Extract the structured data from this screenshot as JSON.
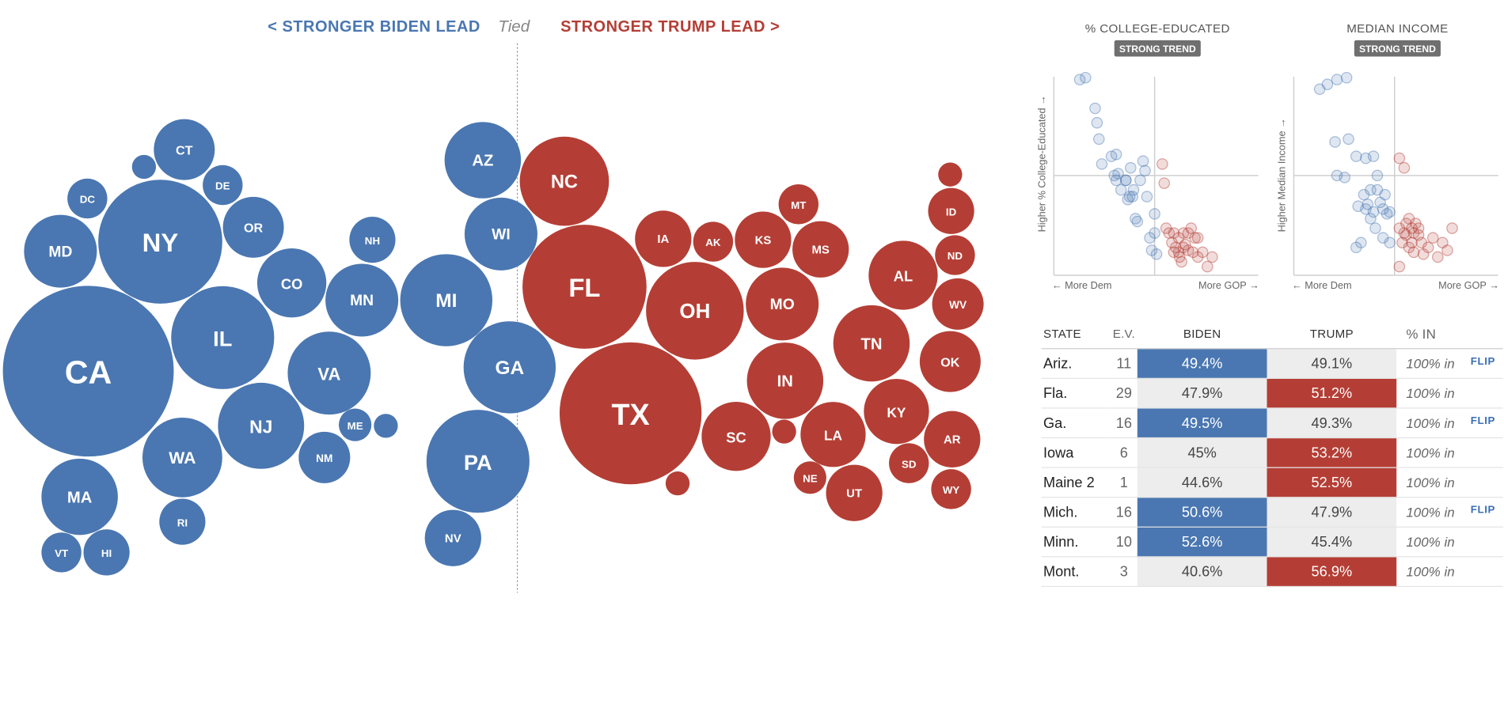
{
  "header": {
    "biden_label": "< STRONGER BIDEN LEAD",
    "tied_label": "Tied",
    "trump_label": "STRONGER TRUMP LEAD >"
  },
  "colors": {
    "biden": "#4a77b1",
    "trump": "#b43e35",
    "lose_cell": "#ededed"
  },
  "chart_data": [
    {
      "type": "bubble",
      "description_scale": "circle area proportional to electoral votes; horizontal position by lead",
      "series": [
        {
          "name": "Biden",
          "color": "#4a77b1",
          "states": [
            {
              "label": "CA",
              "ev": 55
            },
            {
              "label": "NY",
              "ev": 29
            },
            {
              "label": "IL",
              "ev": 20
            },
            {
              "label": "NJ",
              "ev": 14
            },
            {
              "label": "VA",
              "ev": 13
            },
            {
              "label": "WA",
              "ev": 12
            },
            {
              "label": "MA",
              "ev": 11
            },
            {
              "label": "MD",
              "ev": 10
            },
            {
              "label": "MN",
              "ev": 10
            },
            {
              "label": "CO",
              "ev": 9
            },
            {
              "label": "CT",
              "ev": 7
            },
            {
              "label": "OR",
              "ev": 7
            },
            {
              "label": "NM",
              "ev": 5
            },
            {
              "label": "RI",
              "ev": 4
            },
            {
              "label": "NH",
              "ev": 4
            },
            {
              "label": "HI",
              "ev": 4
            },
            {
              "label": "ME",
              "ev": 2
            },
            {
              "label": "DE",
              "ev": 3
            },
            {
              "label": "VT",
              "ev": 3
            },
            {
              "label": "DC",
              "ev": 3
            },
            {
              "label": "",
              "ev": 1
            },
            {
              "label": "",
              "ev": 1
            },
            {
              "label": "MI",
              "ev": 16
            },
            {
              "label": "GA",
              "ev": 16
            },
            {
              "label": "PA",
              "ev": 20
            },
            {
              "label": "AZ",
              "ev": 11
            },
            {
              "label": "WI",
              "ev": 10
            },
            {
              "label": "NV",
              "ev": 6
            }
          ]
        },
        {
          "name": "Trump",
          "color": "#b43e35",
          "states": [
            {
              "label": "TX",
              "ev": 38
            },
            {
              "label": "FL",
              "ev": 29
            },
            {
              "label": "OH",
              "ev": 18
            },
            {
              "label": "NC",
              "ev": 15
            },
            {
              "label": "IN",
              "ev": 11
            },
            {
              "label": "TN",
              "ev": 11
            },
            {
              "label": "MO",
              "ev": 10
            },
            {
              "label": "SC",
              "ev": 9
            },
            {
              "label": "AL",
              "ev": 9
            },
            {
              "label": "LA",
              "ev": 8
            },
            {
              "label": "KY",
              "ev": 8
            },
            {
              "label": "OK",
              "ev": 7
            },
            {
              "label": "IA",
              "ev": 6
            },
            {
              "label": "KS",
              "ev": 6
            },
            {
              "label": "MS",
              "ev": 6
            },
            {
              "label": "UT",
              "ev": 6
            },
            {
              "label": "AR",
              "ev": 6
            },
            {
              "label": "WV",
              "ev": 5
            },
            {
              "label": "NE",
              "ev": 2
            },
            {
              "label": "ID",
              "ev": 4
            },
            {
              "label": "MT",
              "ev": 3
            },
            {
              "label": "AK",
              "ev": 3
            },
            {
              "label": "ND",
              "ev": 3
            },
            {
              "label": "SD",
              "ev": 3
            },
            {
              "label": "WY",
              "ev": 3
            },
            {
              "label": "",
              "ev": 1
            },
            {
              "label": "",
              "ev": 1
            },
            {
              "label": "",
              "ev": 1
            }
          ]
        }
      ]
    },
    {
      "type": "scatter",
      "title": "% COLLEGE-EDUCATED",
      "badge": "STRONG TREND",
      "ylabel": "Higher % College-Educated →",
      "xlabel_left": "← More Dem",
      "xlabel_right": "More GOP →",
      "series": [
        {
          "name": "Biden",
          "color": "#4a77b1",
          "points": [
            [
              -0.78,
              1.0
            ],
            [
              -0.72,
              1.02
            ],
            [
              -0.62,
              0.7
            ],
            [
              -0.6,
              0.55
            ],
            [
              -0.58,
              0.38
            ],
            [
              -0.55,
              0.12
            ],
            [
              -0.45,
              0.2
            ],
            [
              -0.42,
              0.0
            ],
            [
              -0.4,
              0.22
            ],
            [
              -0.38,
              0.02
            ],
            [
              -0.35,
              -0.15
            ],
            [
              -0.3,
              -0.05
            ],
            [
              -0.28,
              -0.25
            ],
            [
              -0.25,
              0.08
            ],
            [
              -0.22,
              -0.15
            ],
            [
              -0.2,
              -0.45
            ],
            [
              -0.18,
              -0.48
            ],
            [
              -0.15,
              -0.05
            ],
            [
              -0.12,
              0.15
            ],
            [
              -0.1,
              0.05
            ],
            [
              -0.08,
              -0.22
            ],
            [
              -0.05,
              -0.65
            ],
            [
              -0.03,
              -0.78
            ],
            [
              0.0,
              -0.6
            ],
            [
              0.02,
              -0.82
            ],
            [
              -0.3,
              -0.05
            ],
            [
              -0.4,
              -0.05
            ],
            [
              -0.26,
              -0.22
            ],
            [
              -0.23,
              -0.22
            ],
            [
              0.0,
              -0.4
            ]
          ]
        },
        {
          "name": "Trump",
          "color": "#b43e35",
          "points": [
            [
              0.08,
              0.12
            ],
            [
              0.1,
              -0.08
            ],
            [
              0.12,
              -0.55
            ],
            [
              0.15,
              -0.6
            ],
            [
              0.18,
              -0.7
            ],
            [
              0.2,
              -0.8
            ],
            [
              0.22,
              -0.75
            ],
            [
              0.25,
              -0.65
            ],
            [
              0.26,
              -0.85
            ],
            [
              0.28,
              -0.9
            ],
            [
              0.3,
              -0.6
            ],
            [
              0.32,
              -0.72
            ],
            [
              0.35,
              -0.78
            ],
            [
              0.38,
              -0.55
            ],
            [
              0.4,
              -0.8
            ],
            [
              0.42,
              -0.65
            ],
            [
              0.45,
              -0.85
            ],
            [
              0.5,
              -0.8
            ],
            [
              0.55,
              -0.95
            ],
            [
              0.6,
              -0.85
            ],
            [
              0.35,
              -0.6
            ],
            [
              0.3,
              -0.75
            ],
            [
              0.2,
              -0.6
            ],
            [
              0.25,
              -0.8
            ],
            [
              0.45,
              -0.65
            ]
          ]
        }
      ]
    },
    {
      "type": "scatter",
      "title": "MEDIAN INCOME",
      "badge": "STRONG TREND",
      "ylabel": "Higher Median Income →",
      "xlabel_left": "← More Dem",
      "xlabel_right": "More GOP →",
      "series": [
        {
          "name": "Biden",
          "color": "#4a77b1",
          "points": [
            [
              -0.78,
              0.9
            ],
            [
              -0.7,
              0.95
            ],
            [
              -0.6,
              1.0
            ],
            [
              -0.5,
              1.02
            ],
            [
              -0.62,
              0.35
            ],
            [
              -0.48,
              0.38
            ],
            [
              -0.6,
              0.0
            ],
            [
              -0.52,
              -0.02
            ],
            [
              -0.4,
              0.2
            ],
            [
              -0.3,
              0.18
            ],
            [
              -0.22,
              0.2
            ],
            [
              -0.18,
              0.0
            ],
            [
              -0.25,
              -0.15
            ],
            [
              -0.32,
              -0.2
            ],
            [
              -0.38,
              -0.32
            ],
            [
              -0.3,
              -0.35
            ],
            [
              -0.22,
              -0.38
            ],
            [
              -0.15,
              -0.28
            ],
            [
              -0.12,
              -0.35
            ],
            [
              -0.08,
              -0.4
            ],
            [
              -0.05,
              -0.38
            ],
            [
              -0.2,
              -0.55
            ],
            [
              -0.12,
              -0.65
            ],
            [
              -0.05,
              -0.7
            ],
            [
              -0.35,
              -0.7
            ],
            [
              -0.4,
              -0.75
            ],
            [
              -0.25,
              -0.45
            ],
            [
              -0.18,
              -0.15
            ],
            [
              -0.28,
              -0.3
            ],
            [
              -0.1,
              -0.2
            ]
          ]
        },
        {
          "name": "Trump",
          "color": "#b43e35",
          "points": [
            [
              0.05,
              0.18
            ],
            [
              0.1,
              0.08
            ],
            [
              0.05,
              -0.55
            ],
            [
              0.1,
              -0.6
            ],
            [
              0.12,
              -0.5
            ],
            [
              0.15,
              -0.45
            ],
            [
              0.18,
              -0.55
            ],
            [
              0.2,
              -0.6
            ],
            [
              0.22,
              -0.5
            ],
            [
              0.25,
              -0.62
            ],
            [
              0.15,
              -0.75
            ],
            [
              0.2,
              -0.8
            ],
            [
              0.28,
              -0.7
            ],
            [
              0.3,
              -0.82
            ],
            [
              0.35,
              -0.75
            ],
            [
              0.4,
              -0.65
            ],
            [
              0.45,
              -0.85
            ],
            [
              0.5,
              -0.7
            ],
            [
              0.55,
              -0.78
            ],
            [
              0.6,
              -0.55
            ],
            [
              0.12,
              -0.62
            ],
            [
              0.18,
              -0.7
            ],
            [
              0.08,
              -0.7
            ],
            [
              0.05,
              -0.95
            ],
            [
              0.25,
              -0.55
            ]
          ]
        }
      ]
    },
    {
      "type": "table",
      "columns": [
        "STATE",
        "E.V.",
        "BIDEN",
        "TRUMP",
        "% IN"
      ],
      "rows": [
        {
          "state": "Ariz.",
          "ev": "11",
          "biden": "49.4%",
          "trump": "49.1%",
          "pct_in": "100% in",
          "flip": "FLIP",
          "winner": "biden"
        },
        {
          "state": "Fla.",
          "ev": "29",
          "biden": "47.9%",
          "trump": "51.2%",
          "pct_in": "100% in",
          "flip": "",
          "winner": "trump"
        },
        {
          "state": "Ga.",
          "ev": "16",
          "biden": "49.5%",
          "trump": "49.3%",
          "pct_in": "100% in",
          "flip": "FLIP",
          "winner": "biden"
        },
        {
          "state": "Iowa",
          "ev": "6",
          "biden": "45%",
          "trump": "53.2%",
          "pct_in": "100% in",
          "flip": "",
          "winner": "trump"
        },
        {
          "state": "Maine 2",
          "ev": "1",
          "biden": "44.6%",
          "trump": "52.5%",
          "pct_in": "100% in",
          "flip": "",
          "winner": "trump"
        },
        {
          "state": "Mich.",
          "ev": "16",
          "biden": "50.6%",
          "trump": "47.9%",
          "pct_in": "100% in",
          "flip": "FLIP",
          "winner": "biden"
        },
        {
          "state": "Minn.",
          "ev": "10",
          "biden": "52.6%",
          "trump": "45.4%",
          "pct_in": "100% in",
          "flip": "",
          "winner": "biden"
        },
        {
          "state": "Mont.",
          "ev": "3",
          "biden": "40.6%",
          "trump": "56.9%",
          "pct_in": "100% in",
          "flip": "",
          "winner": "trump"
        }
      ]
    }
  ]
}
